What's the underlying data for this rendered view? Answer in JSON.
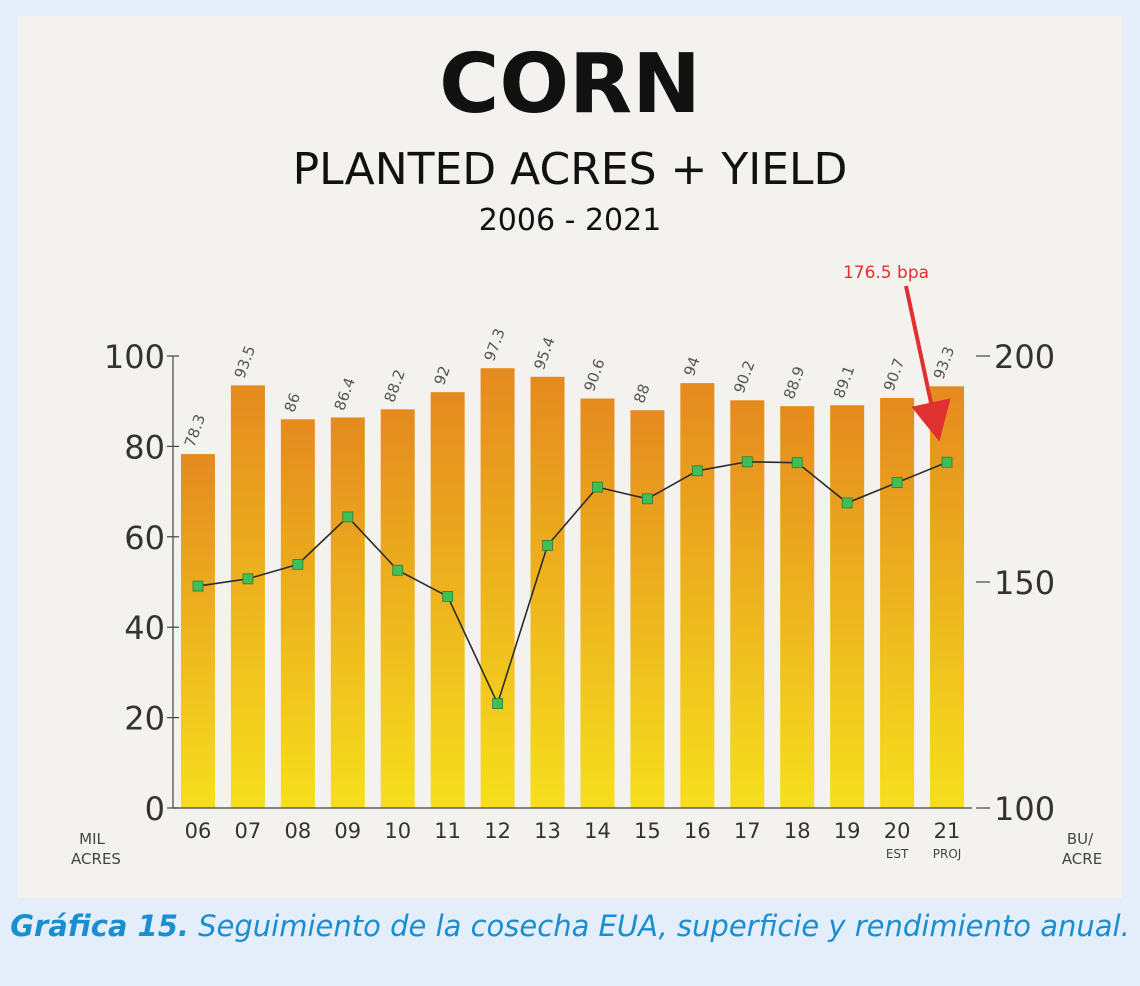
{
  "colors": {
    "bar_top": "#e58a1f",
    "bar_bottom": "#f6df1d",
    "line": "#2c2c2c",
    "marker": "#3fbf55",
    "annotation": "#e0302f",
    "caption": "#1a8ed0"
  },
  "chart_data": {
    "type": "bar",
    "title": "CORN",
    "subtitle": "PLANTED ACRES + YIELD",
    "period": "2006 - 2021",
    "categories": [
      "06",
      "07",
      "08",
      "09",
      "10",
      "11",
      "12",
      "13",
      "14",
      "15",
      "16",
      "17",
      "18",
      "19",
      "20",
      "21"
    ],
    "category_sublabels": [
      "",
      "",
      "",
      "",
      "",
      "",
      "",
      "",
      "",
      "",
      "",
      "",
      "",
      "",
      "EST",
      "PROJ"
    ],
    "y_left": {
      "label_line1": "MIL",
      "label_line2": "ACRES",
      "range": [
        0,
        100
      ],
      "ticks": [
        "0",
        "20",
        "40",
        "60",
        "80",
        "100"
      ]
    },
    "y_right": {
      "label_line1": "BU/",
      "label_line2": "ACRE",
      "range": [
        100,
        200
      ],
      "ticks": [
        "100",
        "150",
        "200"
      ]
    },
    "series": [
      {
        "type": "bar",
        "axis": "left",
        "values": [
          78.3,
          93.5,
          86,
          86.4,
          88.2,
          92,
          97.3,
          95.4,
          90.6,
          88,
          94,
          90.2,
          88.9,
          89.1,
          90.7,
          93.3
        ]
      },
      {
        "type": "line",
        "axis": "right",
        "values": [
          149.1,
          150.7,
          153.9,
          164.4,
          152.6,
          146.8,
          123.1,
          158.1,
          171,
          168.4,
          174.6,
          176.6,
          176.4,
          167.5,
          172,
          176.5
        ]
      }
    ],
    "annotation": {
      "text": "176.5 bpa",
      "category": "21"
    },
    "grid": false
  },
  "caption": {
    "prefix": "Gráfica 15.",
    "text": " Seguimiento de la cosecha EUA, superficie y rendimiento anual."
  }
}
